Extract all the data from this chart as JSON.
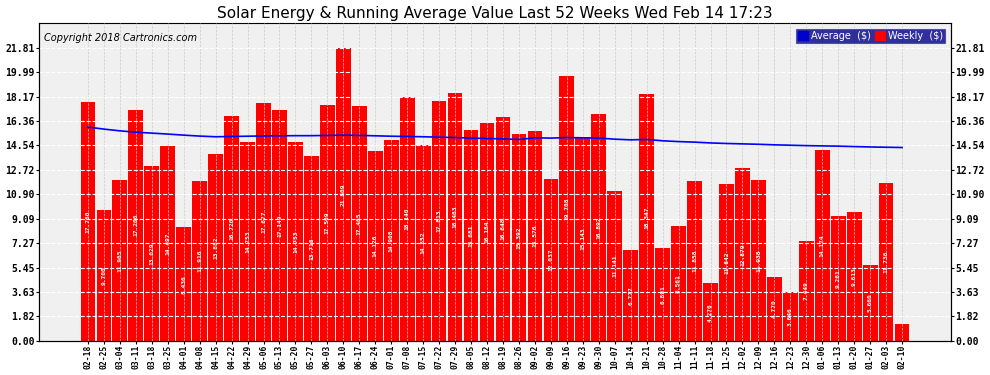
{
  "title": "Solar Energy & Running Average Value Last 52 Weeks Wed Feb 14 17:23",
  "copyright": "Copyright 2018 Cartronics.com",
  "bar_color": "#FF0000",
  "avg_line_color": "#0000FF",
  "background_color": "#FFFFFF",
  "plot_bg_color": "#FFFFFF",
  "grid_color": "#AAAAAA",
  "ylim_max": 23.63,
  "yticks": [
    0.0,
    1.82,
    3.63,
    5.45,
    7.27,
    9.09,
    10.9,
    12.72,
    14.54,
    16.36,
    18.17,
    19.99,
    21.81
  ],
  "categories": [
    "02-18",
    "02-25",
    "03-04",
    "03-11",
    "03-18",
    "03-25",
    "04-01",
    "04-08",
    "04-15",
    "04-22",
    "04-29",
    "05-06",
    "05-13",
    "05-20",
    "05-27",
    "06-03",
    "06-10",
    "06-17",
    "06-24",
    "07-01",
    "07-08",
    "07-15",
    "07-22",
    "07-29",
    "08-05",
    "08-12",
    "08-19",
    "08-26",
    "09-02",
    "09-09",
    "09-16",
    "09-23",
    "09-30",
    "10-07",
    "10-14",
    "10-21",
    "10-28",
    "11-04",
    "11-11",
    "11-18",
    "11-25",
    "12-02",
    "12-09",
    "12-16",
    "12-23",
    "12-30",
    "01-06",
    "01-13",
    "01-20",
    "01-27",
    "02-03",
    "02-10"
  ],
  "weekly_values": [
    17.76,
    9.7,
    11.965,
    17.206,
    13.029,
    14.497,
    8.436,
    11.916,
    13.882,
    16.72,
    14.753,
    17.677,
    17.149,
    14.753,
    13.718,
    17.509,
    21.809,
    17.465,
    14.126,
    14.908,
    18.14,
    14.552,
    17.813,
    18.463,
    15.681,
    16.184,
    16.648,
    15.392,
    15.576,
    12.037,
    19.708,
    15.143,
    16.892,
    11.141,
    6.777,
    18.347,
    6.891,
    8.561,
    11.858,
    4.276,
    11.642,
    12.879,
    11.938,
    4.77,
    3.646,
    7.449,
    14.174,
    9.261,
    9.613,
    5.66,
    11.736,
    1.293
  ],
  "avg_values": [
    15.9,
    15.75,
    15.62,
    15.52,
    15.45,
    15.38,
    15.3,
    15.23,
    15.18,
    15.2,
    15.22,
    15.24,
    15.25,
    15.26,
    15.26,
    15.28,
    15.3,
    15.28,
    15.25,
    15.22,
    15.2,
    15.18,
    15.15,
    15.12,
    15.08,
    15.05,
    15.02,
    14.98,
    15.1,
    15.08,
    15.12,
    15.1,
    15.08,
    15.0,
    14.95,
    14.98,
    14.88,
    14.82,
    14.78,
    14.72,
    14.68,
    14.65,
    14.62,
    14.58,
    14.55,
    14.52,
    14.5,
    14.48,
    14.45,
    14.42,
    14.4,
    14.38
  ],
  "label_fontsize": 4.5,
  "tick_fontsize": 7.0,
  "title_fontsize": 11,
  "copyright_fontsize": 7
}
